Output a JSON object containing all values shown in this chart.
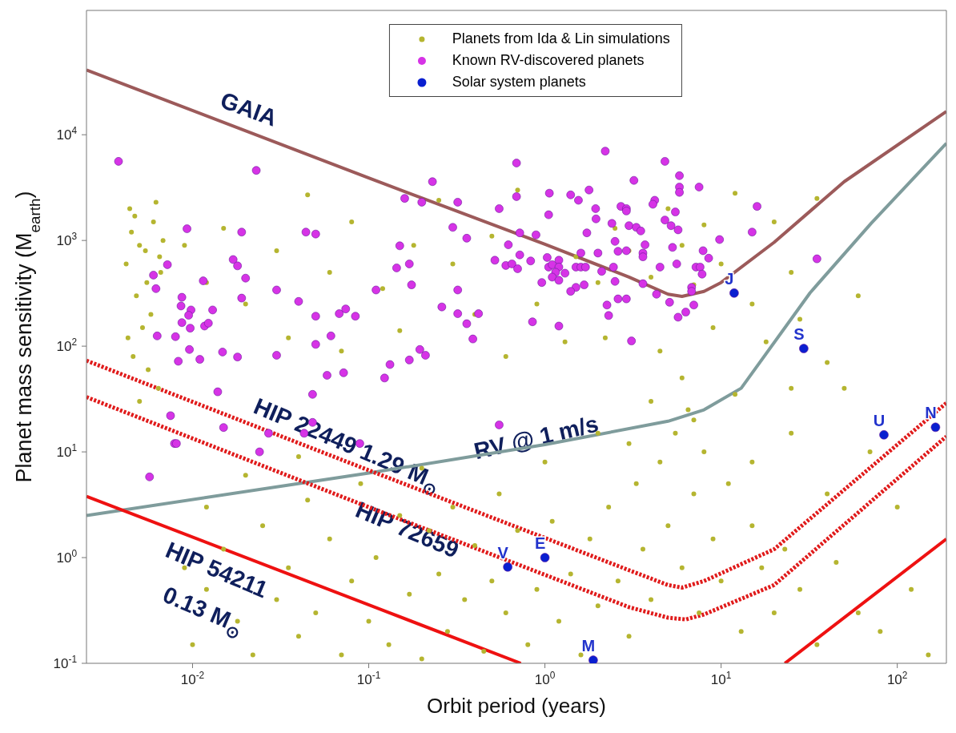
{
  "chart_data": {
    "type": "scatter",
    "xlabel": "Orbit period (years)",
    "ylabel": "Planet mass sensitivity (M$_{earth}$)",
    "log": "xy",
    "legend": "top",
    "line_style": "solid",
    "xlim": [
      0.0025,
      190
    ],
    "ylim": [
      0.1,
      150000
    ],
    "xticks": [
      {
        "value": 0.01,
        "label": "10$^{-2}$"
      },
      {
        "value": 0.1,
        "label": "10$^{-1}$"
      },
      {
        "value": 1,
        "label": "10$^{0}$"
      },
      {
        "value": 10,
        "label": "10$^{1}$"
      },
      {
        "value": 100,
        "label": "10$^{2}$"
      }
    ],
    "yticks": [
      {
        "value": 0.1,
        "label": "10$^{-1}$"
      },
      {
        "value": 1,
        "label": "10$^{0}$"
      },
      {
        "value": 10,
        "label": "10$^{1}$"
      },
      {
        "value": 100,
        "label": "10$^{2}$"
      },
      {
        "value": 1000,
        "label": "10$^{3}$"
      },
      {
        "value": 10000,
        "label": "10$^{4}$"
      }
    ],
    "series": [
      {
        "name": "Planets from Ida & Lin simulations",
        "marker": "circle",
        "color": "#b5b530",
        "x": [
          0.0042,
          0.0045,
          0.005,
          0.0055,
          0.006,
          0.0065,
          0.0048,
          0.0058,
          0.0044,
          0.0062,
          0.0052,
          0.0068,
          0.0046,
          0.0056,
          0.0064,
          0.005,
          0.0043,
          0.0066,
          0.0054,
          0.0047,
          0.009,
          0.012,
          0.015,
          0.02,
          0.03,
          0.045,
          0.06,
          0.08,
          0.12,
          0.18,
          0.25,
          0.3,
          0.5,
          0.7,
          0.4,
          0.9,
          1.5,
          2,
          2.5,
          3,
          4,
          5,
          6,
          7,
          8,
          10,
          12,
          15,
          20,
          25,
          35,
          28,
          0.035,
          0.07,
          0.15,
          0.6,
          1.3,
          2.2,
          4.5,
          9,
          18,
          40,
          25,
          60,
          0.01,
          0.012,
          0.015,
          0.018,
          0.022,
          0.025,
          0.03,
          0.035,
          0.04,
          0.045,
          0.05,
          0.06,
          0.07,
          0.08,
          0.09,
          0.1,
          0.11,
          0.13,
          0.15,
          0.17,
          0.2,
          0.22,
          0.25,
          0.28,
          0.3,
          0.35,
          0.4,
          0.45,
          0.5,
          0.55,
          0.6,
          0.7,
          0.8,
          0.9,
          1.1,
          1.2,
          1.4,
          1.6,
          1.8,
          2,
          2.3,
          2.6,
          3,
          3.3,
          3.6,
          4,
          4.5,
          5,
          5.5,
          6,
          6.5,
          7,
          7.5,
          8,
          9,
          10,
          11,
          13,
          15,
          17,
          20,
          23,
          28,
          35,
          45,
          60,
          80,
          120,
          150,
          3,
          4,
          6,
          7,
          12,
          15,
          25,
          40,
          50,
          70,
          100,
          0.02,
          0.012,
          0.009,
          0.04,
          0.2,
          1,
          2
        ],
        "values": [
          600,
          1200,
          900,
          400,
          1500,
          700,
          300,
          200,
          2000,
          2300,
          150,
          1000,
          80,
          60,
          40,
          30,
          120,
          500,
          800,
          1700,
          900,
          400,
          1300,
          250,
          800,
          2700,
          500,
          1500,
          350,
          900,
          2400,
          600,
          1100,
          3000,
          200,
          250,
          700,
          400,
          1300,
          800,
          450,
          2000,
          900,
          380,
          1400,
          600,
          2800,
          250,
          1500,
          500,
          2500,
          180,
          120,
          90,
          140,
          80,
          110,
          120,
          90,
          150,
          110,
          70,
          40,
          300,
          0.15,
          0.5,
          1.2,
          0.25,
          0.12,
          2,
          0.4,
          0.8,
          0.18,
          3.5,
          0.3,
          1.5,
          0.12,
          0.6,
          5,
          0.25,
          1,
          0.15,
          2.5,
          0.45,
          0.11,
          1.8,
          0.7,
          0.2,
          3,
          0.4,
          1.3,
          0.13,
          0.6,
          4,
          0.3,
          1.8,
          0.15,
          0.5,
          2.2,
          0.25,
          0.7,
          0.12,
          1.5,
          0.35,
          3,
          0.6,
          0.18,
          5,
          1.2,
          0.4,
          8,
          2,
          15,
          0.8,
          25,
          4,
          0.3,
          10,
          1.5,
          0.6,
          5,
          0.2,
          2,
          0.8,
          0.3,
          1.2,
          0.5,
          0.15,
          0.9,
          0.3,
          0.2,
          0.5,
          0.12,
          12,
          30,
          50,
          20,
          35,
          8,
          15,
          4,
          40,
          10,
          3,
          6,
          3,
          0.8,
          9,
          7,
          8,
          15
        ]
      },
      {
        "type": "line",
        "color": "#9c5a5a",
        "x": [
          0.0025,
          0.1,
          1,
          3,
          5,
          6,
          8,
          10,
          20,
          50,
          190
        ],
        "values": [
          41000,
          3900,
          920,
          450,
          310,
          296,
          330,
          400,
          960,
          3600,
          16600
        ]
      },
      {
        "type": "line",
        "color": "#7f9c9c",
        "x": [
          0.0025,
          0.1,
          1,
          5,
          8,
          13,
          32,
          71,
          190
        ],
        "values": [
          2.5,
          6.3,
          11.7,
          19.5,
          25,
          40,
          320,
          1450,
          8300
        ]
      },
      {
        "type": "line",
        "color": "#e01b1b",
        "line_style": "dotted",
        "x": [
          0.0025,
          0.1,
          3,
          5,
          6,
          8,
          20,
          190
        ],
        "values": [
          73,
          6.7,
          0.76,
          0.55,
          0.52,
          0.6,
          1.2,
          29
        ]
      },
      {
        "type": "line",
        "color": "#e01b1b",
        "line_style": "dotted",
        "x": [
          0.0025,
          0.1,
          3,
          5,
          6.3,
          8,
          20,
          190
        ],
        "values": [
          33,
          3,
          0.34,
          0.27,
          0.26,
          0.29,
          0.55,
          14
        ]
      },
      {
        "type": "line",
        "color": "#ee1111",
        "x": [
          0.0025,
          0.73
        ],
        "values": [
          3.8,
          0.1
        ]
      },
      {
        "type": "line",
        "color": "#ee1111",
        "x": [
          23,
          190
        ],
        "values": [
          0.1,
          1.5
        ]
      },
      {
        "name": "Known RV-discovered planets",
        "marker": "circle",
        "color": "#d633e6",
        "x": [
          0.0038,
          0.023,
          0.23,
          0.16,
          0.2,
          0.32,
          0.55,
          0.69,
          0.69,
          0.0093,
          0.019,
          0.044,
          0.05,
          0.15,
          0.3,
          0.36,
          0.62,
          0.52,
          0.6,
          0.0072,
          0.006,
          0.0062,
          0.017,
          0.018,
          0.02,
          0.0115,
          0.03,
          0.11,
          0.144,
          0.17,
          0.175,
          0.32,
          0.019,
          0.0087,
          0.0086,
          0.0098,
          0.0095,
          0.0087,
          0.0097,
          0.0117,
          0.0123,
          0.013,
          0.04,
          0.05,
          0.068,
          0.074,
          0.084,
          0.26,
          0.32,
          0.36,
          0.42,
          0.39,
          0.0063,
          0.008,
          0.0096,
          0.0083,
          0.011,
          0.0148,
          0.018,
          0.03,
          0.05,
          0.061,
          0.058,
          0.072,
          0.123,
          0.132,
          0.17,
          0.195,
          0.21,
          0.0139,
          0.048,
          0.0075,
          0.015,
          0.027,
          0.043,
          0.048,
          0.089,
          0.0079,
          0.024,
          0.55,
          0.0057,
          0.0081,
          2.2,
          4.8,
          5.8,
          5.8,
          5.8,
          3.2,
          7.5,
          1.06,
          1.4,
          1.55,
          1.78,
          1.05,
          1.94,
          1.95,
          2.7,
          2.9,
          2.9,
          4.2,
          4.1,
          4.8,
          5.5,
          5.2,
          5.7,
          2.4,
          3,
          3.3,
          3.5,
          1.73,
          0.89,
          0.72,
          9.8,
          16,
          15,
          35,
          2.5,
          3.7,
          5.3,
          7.9,
          8.5,
          2.9,
          2.6,
          2,
          1.6,
          3.6,
          3.6,
          0.72,
          0.83,
          1.03,
          1.2,
          0.65,
          0.7,
          1.05,
          1.1,
          1.2,
          1.15,
          1.3,
          1.1,
          1.5,
          1.6,
          1.7,
          2.45,
          2.1,
          2.5,
          3.6,
          4.5,
          5.6,
          7.2,
          7.6,
          7.8,
          4.3,
          5.1,
          6.8,
          6.8,
          7,
          6.3,
          5.7,
          2.6,
          2.9,
          2.25,
          2.3,
          1.67,
          1.5,
          1.4,
          1.2,
          0.96,
          0.85,
          1.2,
          3.1
        ],
        "values": [
          5600,
          4600,
          3600,
          2500,
          2300,
          2300,
          2000,
          5400,
          2600,
          1290,
          1200,
          1200,
          1150,
          890,
          1330,
          1050,
          910,
          650,
          580,
          590,
          470,
          350,
          660,
          575,
          440,
          415,
          340,
          340,
          550,
          600,
          380,
          340,
          285,
          290,
          240,
          220,
          196,
          167,
          148,
          155,
          165,
          220,
          265,
          192,
          203,
          225,
          192,
          235,
          203,
          163,
          203,
          117,
          125,
          123,
          93,
          72,
          75,
          88,
          79,
          82,
          104,
          125,
          53,
          56,
          50,
          67,
          74,
          93,
          82,
          37,
          35,
          22,
          17,
          15,
          15,
          19,
          12,
          12,
          10,
          18,
          5.8,
          12,
          7000,
          5600,
          4100,
          3200,
          2850,
          3700,
          3200,
          2800,
          2700,
          2400,
          3000,
          1750,
          2000,
          1600,
          2100,
          2000,
          1900,
          2400,
          2200,
          1560,
          1860,
          1380,
          1260,
          1450,
          1380,
          1330,
          1230,
          1180,
          1130,
          1180,
          1020,
          2100,
          1200,
          670,
          980,
          910,
          860,
          800,
          680,
          800,
          790,
          760,
          760,
          760,
          700,
          730,
          640,
          690,
          650,
          600,
          540,
          560,
          590,
          560,
          500,
          490,
          450,
          560,
          560,
          560,
          560,
          510,
          410,
          390,
          560,
          600,
          560,
          560,
          480,
          310,
          260,
          360,
          330,
          245,
          210,
          188,
          280,
          280,
          245,
          195,
          380,
          360,
          330,
          420,
          400,
          170,
          155,
          112
        ]
      },
      {
        "name": "Solar system planets",
        "marker": "circle",
        "color": "#0a1fd0",
        "x": [
          0.615,
          1,
          1.88,
          11.86,
          29.46,
          84,
          164.8
        ],
        "values": [
          0.815,
          1,
          0.107,
          318,
          95,
          14.5,
          17.1
        ]
      }
    ],
    "annotations": [
      "GAIA",
      "HIP 22449  1.29 M$_{⊙}$",
      "RV @ 1 m/s",
      "HIP 72659",
      "HIP 54211",
      "0.13 M$_{⊙}$",
      {
        "text": "V",
        "x": 0.615,
        "y": 0.815
      },
      {
        "text": "E",
        "x": 1,
        "y": 1
      },
      {
        "text": "M",
        "x": 1.88,
        "y": 0.107
      },
      {
        "text": "J",
        "x": 11.86,
        "y": 318
      },
      {
        "text": "S",
        "x": 29.46,
        "y": 95
      },
      {
        "text": "U",
        "x": 84,
        "y": 14.5
      },
      {
        "text": "N",
        "x": 164.8,
        "y": 17.1
      }
    ]
  }
}
